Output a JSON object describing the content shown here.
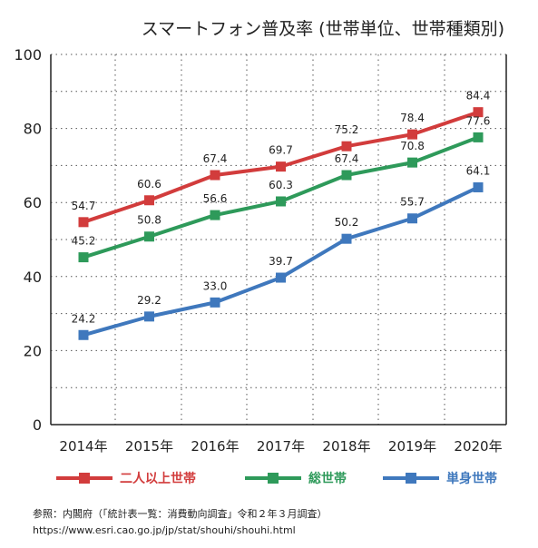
{
  "chart_data": {
    "type": "line",
    "title": "スマートフォン普及率 (世帯単位、世帯種類別)",
    "categories": [
      "2014年",
      "2015年",
      "2016年",
      "2017年",
      "2018年",
      "2019年",
      "2020年"
    ],
    "ylim": [
      0,
      100
    ],
    "yticks": [
      0,
      20,
      40,
      60,
      80,
      100
    ],
    "grid": "horizontal dotted",
    "legend_position": "bottom",
    "series": [
      {
        "name": "二人以上世帯",
        "color": "#d23c3c",
        "values": [
          54.7,
          60.6,
          67.4,
          69.7,
          75.2,
          78.4,
          84.4
        ]
      },
      {
        "name": "総世帯",
        "color": "#2e9a5a",
        "values": [
          45.2,
          50.8,
          56.6,
          60.3,
          67.4,
          70.8,
          77.6
        ]
      },
      {
        "name": "単身世帯",
        "color": "#3f78bd",
        "values": [
          24.2,
          29.2,
          33.0,
          39.7,
          50.2,
          55.7,
          64.1
        ]
      }
    ]
  },
  "source": {
    "line1": "参照：内閣府（「統計表一覧：消費動向調査」令和２年３月調査）",
    "line2": "https://www.esri.cao.go.jp/jp/stat/shouhi/shouhi.html"
  }
}
